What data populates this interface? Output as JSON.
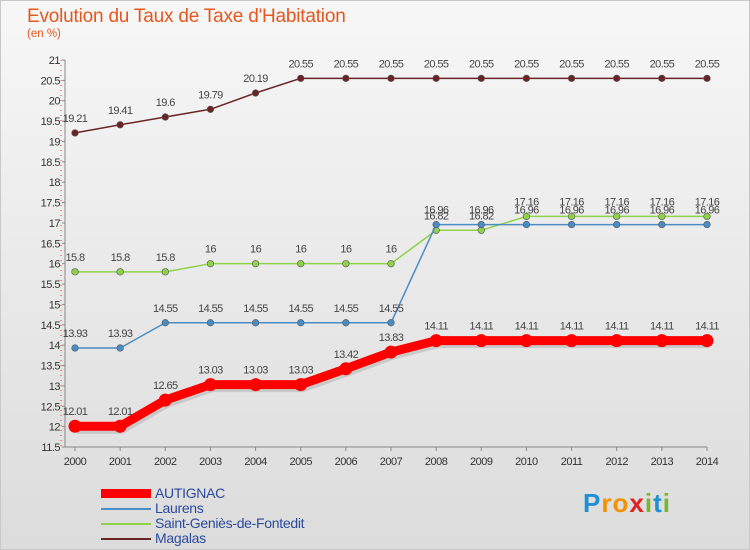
{
  "header": {
    "title": "Evolution du Taux de Taxe d'Habitation",
    "subtitle": "(en %)"
  },
  "chart_data": {
    "type": "line",
    "x": [
      "2000",
      "2001",
      "2002",
      "2003",
      "2004",
      "2005",
      "2006",
      "2007",
      "2008",
      "2009",
      "2010",
      "2011",
      "2012",
      "2013",
      "2014"
    ],
    "ylim": [
      11.5,
      21
    ],
    "yticks": [
      "11.5",
      "12",
      "12.5",
      "13",
      "13.5",
      "14",
      "14.5",
      "15",
      "15.5",
      "16",
      "16.5",
      "17",
      "17.5",
      "18",
      "18.5",
      "19",
      "19.5",
      "20",
      "20.5",
      "21"
    ],
    "grid": false,
    "legend_position": "bottom-left",
    "series": [
      {
        "name": "Magalas",
        "color": "#6b2424",
        "values": [
          19.21,
          19.41,
          19.6,
          19.79,
          20.19,
          20.55,
          20.55,
          20.55,
          20.55,
          20.55,
          20.55,
          20.55,
          20.55,
          20.55,
          20.55
        ],
        "labels": [
          "19.21",
          "19.41",
          "19.6",
          "19.79",
          "20.19",
          "20.55",
          "20.55",
          "20.55",
          "20.55",
          "20.55",
          "20.55",
          "20.55",
          "20.55",
          "20.55",
          "20.55"
        ]
      },
      {
        "name": "Saint-Geniès-de-Fontedit",
        "color": "#8fd24a",
        "values": [
          15.8,
          15.8,
          15.8,
          16,
          16,
          16,
          16,
          16,
          16.82,
          16.82,
          17.16,
          17.16,
          17.16,
          17.16,
          17.16
        ],
        "labels": [
          "15.8",
          "15.8",
          "15.8",
          "16",
          "16",
          "16",
          "16",
          "16",
          "16.82",
          "16.82",
          "17.16",
          "17.16",
          "17.16",
          "17.16",
          "17.16"
        ]
      },
      {
        "name": "Laurens",
        "color": "#4a8cc4",
        "values": [
          13.93,
          13.93,
          14.55,
          14.55,
          14.55,
          14.55,
          14.55,
          14.55,
          16.96,
          16.96,
          16.96,
          16.96,
          16.96,
          16.96,
          16.96
        ],
        "labels": [
          "13.93",
          "13.93",
          "14.55",
          "14.55",
          "14.55",
          "14.55",
          "14.55",
          "14.55",
          "16.96",
          "16.96",
          "16.96",
          "16.96",
          "16.96",
          "16.96",
          "16.96"
        ]
      },
      {
        "name": "AUTIGNAC",
        "color": "#ff0000",
        "values": [
          12.01,
          12.01,
          12.65,
          13.03,
          13.03,
          13.03,
          13.42,
          13.83,
          14.11,
          14.11,
          14.11,
          14.11,
          14.11,
          14.11,
          14.11
        ],
        "labels": [
          "12.01",
          "12.01",
          "12.65",
          "13.03",
          "13.03",
          "13.03",
          "13.42",
          "13.83",
          "14.11",
          "14.11",
          "14.11",
          "14.11",
          "14.11",
          "14.11",
          "14.11"
        ]
      }
    ]
  },
  "legend": {
    "items": [
      {
        "label": "AUTIGNAC",
        "color": "#ff0000"
      },
      {
        "label": "Laurens",
        "color": "#4a8cc4"
      },
      {
        "label": "Saint-Geniès-de-Fontedit",
        "color": "#8fd24a"
      },
      {
        "label": "Magalas",
        "color": "#6b2424"
      }
    ]
  },
  "logo": {
    "text": "Proxiti",
    "letters": [
      "P",
      "r",
      "o",
      "x",
      "i",
      "t",
      "i"
    ],
    "colors": [
      "#1f8fd6",
      "#f39200",
      "#f39200",
      "#e02020",
      "#78b62a",
      "#1f8fd6",
      "#78b62a"
    ]
  }
}
